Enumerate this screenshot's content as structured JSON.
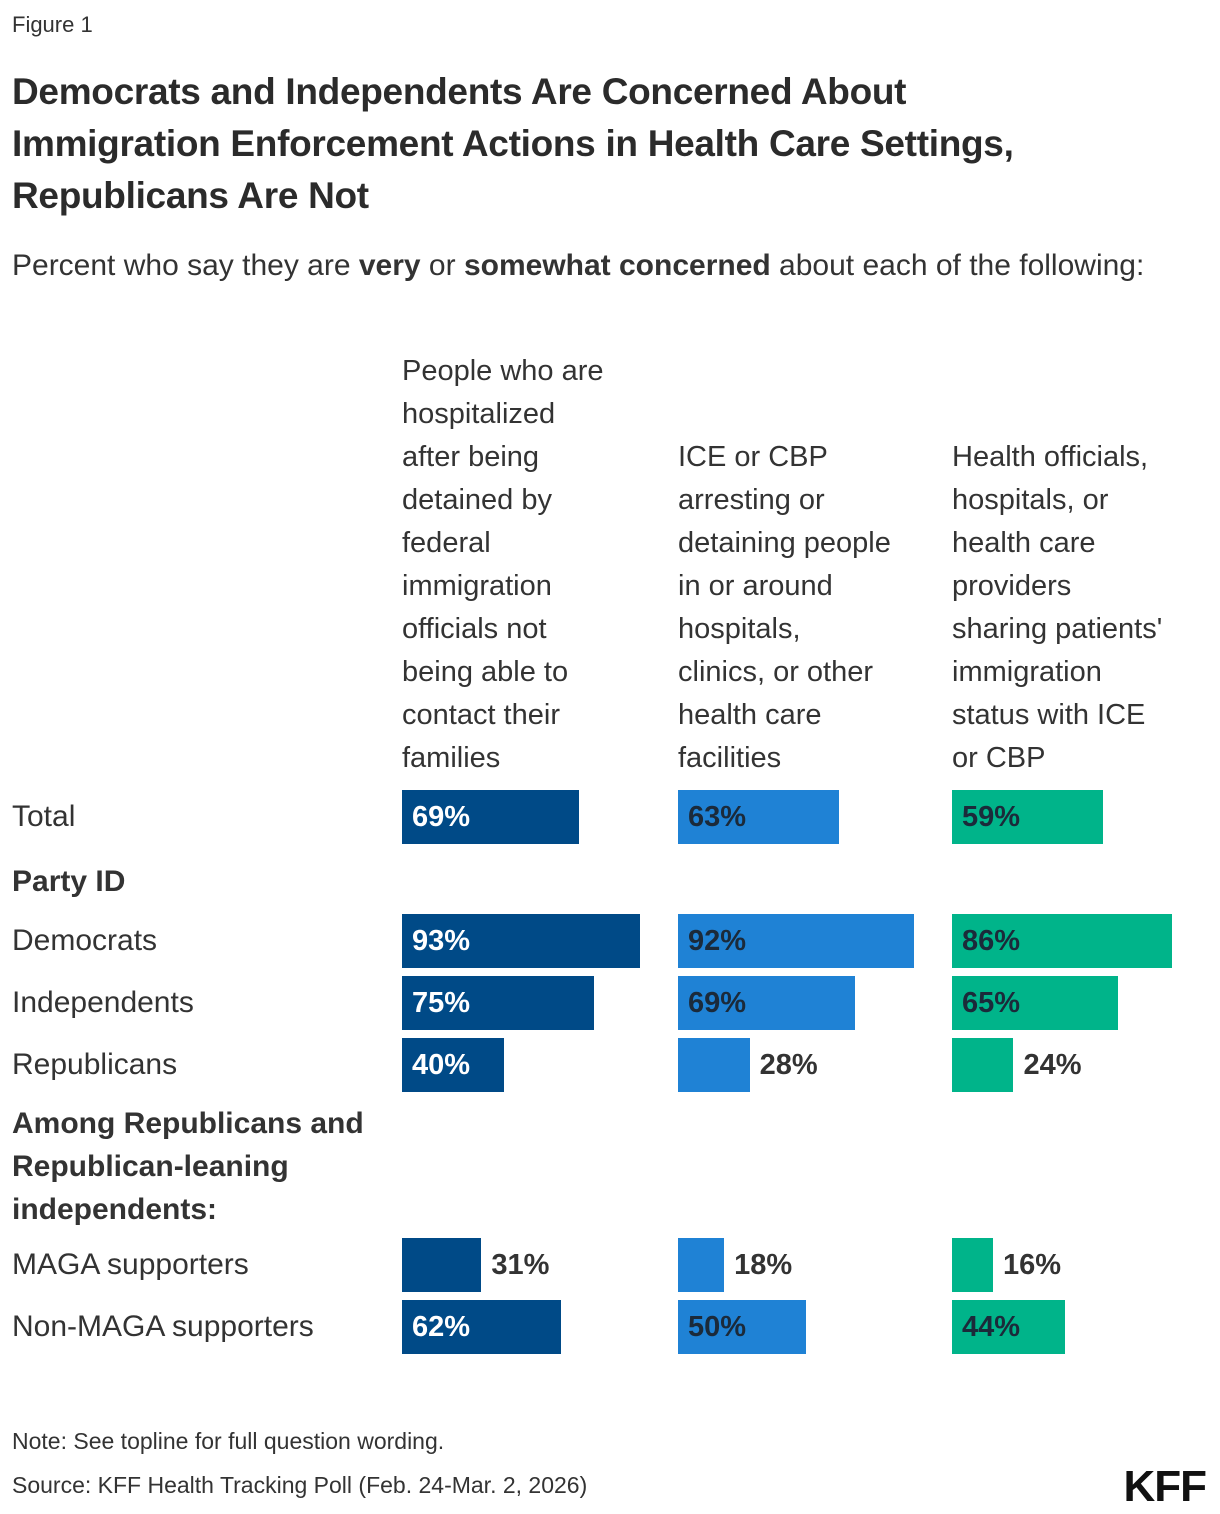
{
  "figure_label": "Figure 1",
  "title_lines": [
    "Democrats and Independents Are Concerned About",
    "Immigration Enforcement Actions in Health Care Settings,",
    "Republicans Are Not"
  ],
  "subtitle": {
    "pre": "Percent who say they are ",
    "b1": "very",
    "mid": " or ",
    "b2": "somewhat concerned",
    "post": " about each of the following:"
  },
  "note": "Note: See topline for full question wording.",
  "source": "Source: KFF Health Tracking Poll (Feb. 24-Mar. 2, 2026)",
  "logo": "KFF",
  "chart_data": {
    "type": "bar",
    "orientation": "horizontal",
    "unit": "%",
    "xlim": [
      0,
      100
    ],
    "series": [
      {
        "name": "People who are hospitalized after being detained by federal immigration officials not being able to contact their families",
        "header_lines": [
          "People who are",
          "hospitalized",
          "after being",
          "detained by",
          "federal",
          "immigration",
          "officials not",
          "being able to",
          "contact their",
          "families"
        ],
        "color": "#004a87",
        "label_color_inside": "#ffffff",
        "values": [
          69,
          93,
          75,
          40,
          31,
          62
        ]
      },
      {
        "name": "ICE or CBP arresting or detaining people in or around hospitals, clinics, or other health care facilities",
        "header_lines": [
          "ICE or CBP",
          "arresting or",
          "detaining people",
          "in or around",
          "hospitals,",
          "clinics, or other",
          "health care",
          "facilities"
        ],
        "color": "#1f82d5",
        "label_color_inside": "#1b2a3a",
        "values": [
          63,
          92,
          69,
          28,
          18,
          50
        ]
      },
      {
        "name": "Health officials, hospitals, or health care providers sharing patients' immigration status with ICE or CBP",
        "header_lines": [
          "Health officials,",
          "hospitals, or",
          "health care",
          "providers",
          "sharing patients'",
          "immigration",
          "status with ICE",
          "or CBP"
        ],
        "color": "#00b48a",
        "label_color_inside": "#1b2a3a",
        "values": [
          59,
          86,
          65,
          24,
          16,
          44
        ]
      }
    ],
    "categories": [
      "Total",
      "Democrats",
      "Independents",
      "Republicans",
      "MAGA supporters",
      "Non-MAGA supporters"
    ],
    "group_headings": [
      {
        "lines": [
          "Party ID"
        ]
      },
      {
        "lines": [
          "Among Republicans and",
          "Republican-leaning",
          "independents:"
        ]
      }
    ]
  }
}
